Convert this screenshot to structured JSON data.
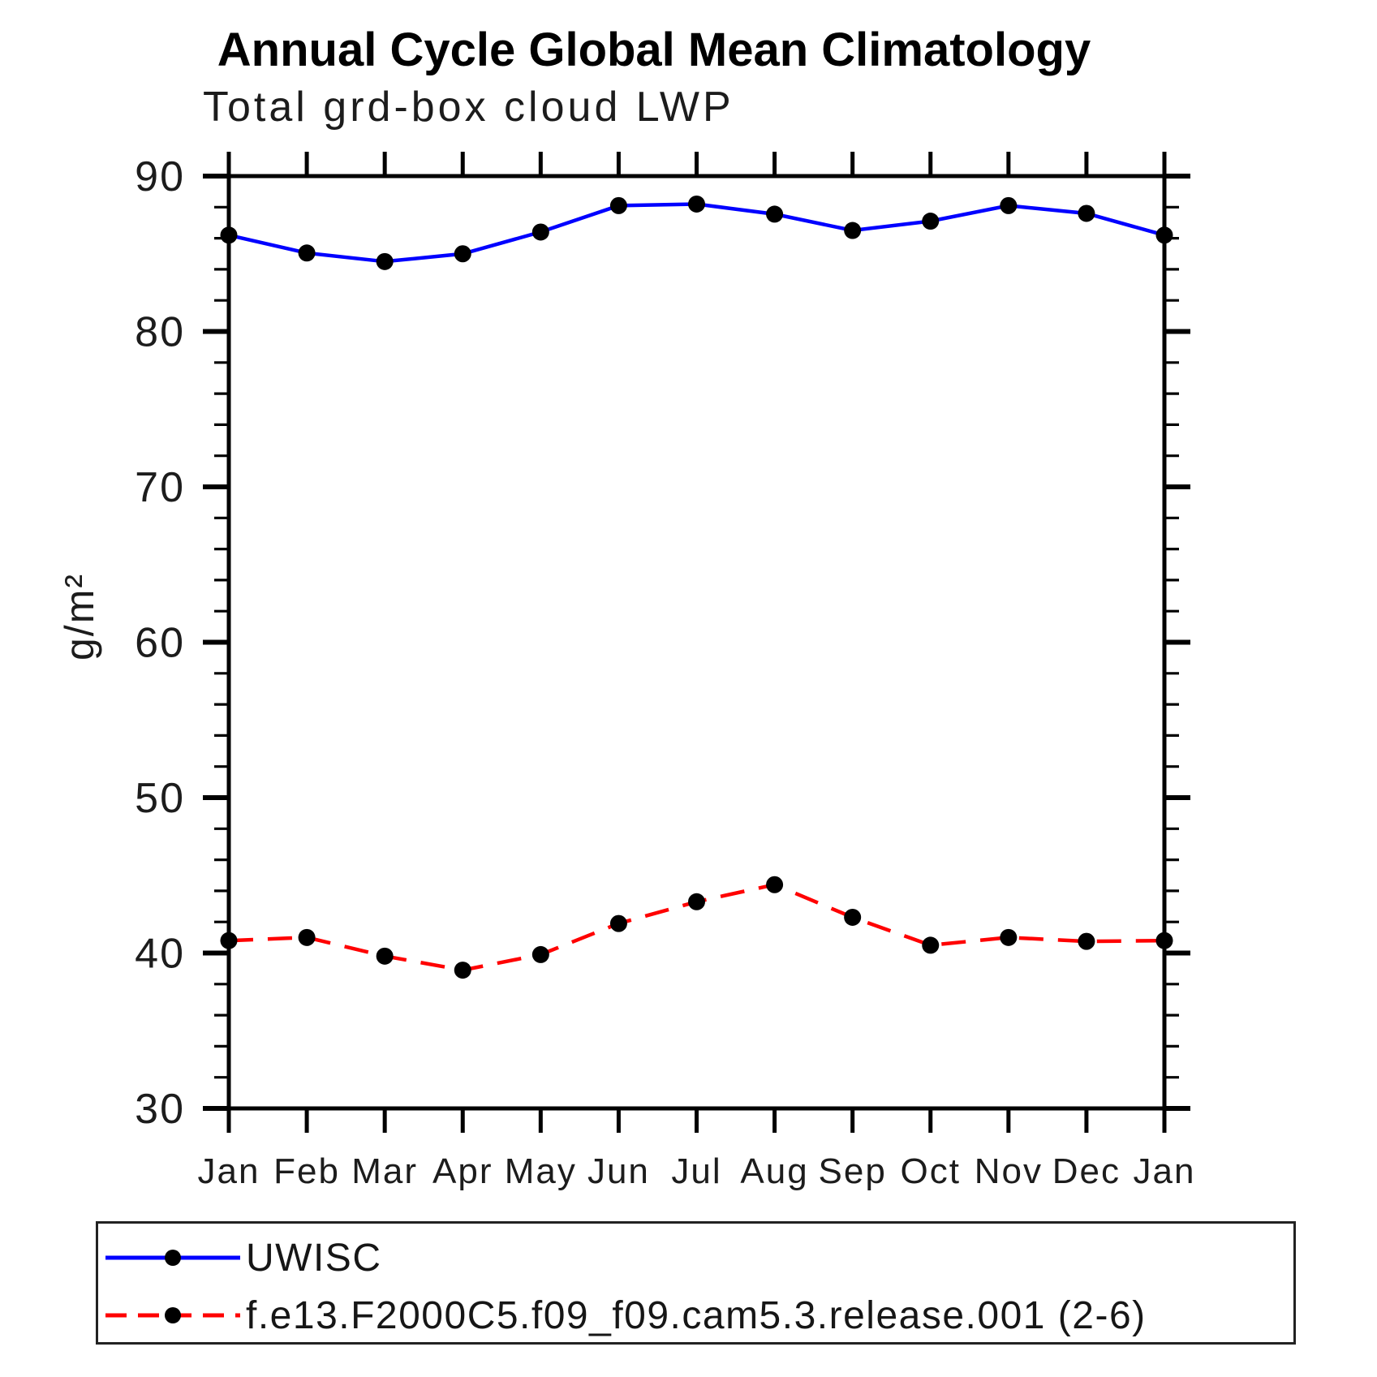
{
  "chart_data": {
    "type": "line",
    "title": "Annual Cycle Global Mean Climatology",
    "subtitle": "Total grd-box cloud LWP",
    "xlabel": "",
    "ylabel": "g/m²",
    "ylim": [
      30,
      90
    ],
    "y_major_ticks": [
      30,
      40,
      50,
      60,
      70,
      80,
      90
    ],
    "y_minor_step": 2,
    "grid": false,
    "legend_position": "bottom",
    "categories": [
      "Jan",
      "Feb",
      "Mar",
      "Apr",
      "May",
      "Jun",
      "Jul",
      "Aug",
      "Sep",
      "Oct",
      "Nov",
      "Dec",
      "Jan"
    ],
    "series": [
      {
        "name": "UWISC",
        "color": "#0000ff",
        "line_style": "solid",
        "marker": "circle",
        "marker_color": "#000000",
        "values": [
          86.2,
          85.05,
          84.5,
          85.0,
          86.4,
          88.1,
          88.2,
          87.55,
          86.5,
          87.1,
          88.1,
          87.6,
          86.2
        ]
      },
      {
        "name": "f.e13.F2000C5.f09_f09.cam5.3.release.001 (2-6)",
        "color": "#ff0000",
        "line_style": "dashed",
        "marker": "circle",
        "marker_color": "#000000",
        "values": [
          40.8,
          41.0,
          39.8,
          38.9,
          39.9,
          41.9,
          43.3,
          44.4,
          42.3,
          40.5,
          41.0,
          40.75,
          40.8
        ]
      }
    ]
  }
}
